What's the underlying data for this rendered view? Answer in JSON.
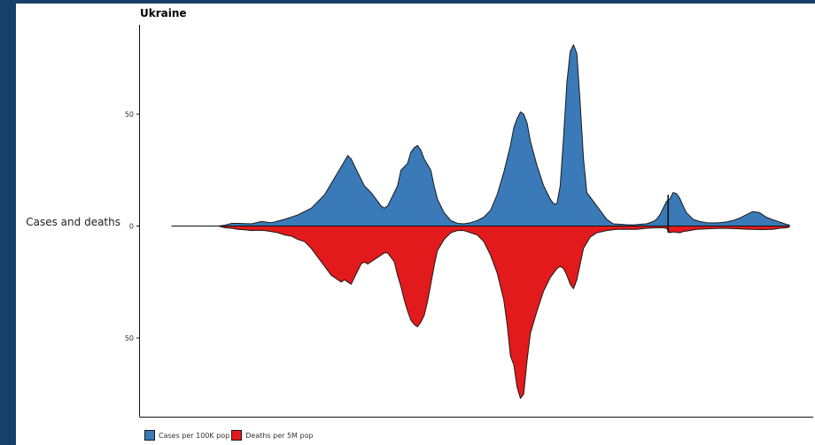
{
  "chart_data": {
    "type": "area",
    "title": "Ukraine",
    "ylabel": "Cases and deaths",
    "xlabel": "",
    "y_ticks": [
      {
        "label": "50",
        "value": 50
      },
      {
        "label": "0",
        "value": 0
      },
      {
        "label": "50",
        "value": -50
      }
    ],
    "ylim": [
      -85,
      90
    ],
    "x_range": [
      0,
      200
    ],
    "grid": false,
    "legend_position": "bottom-left",
    "series": [
      {
        "name": "Cases per 100K pop",
        "color": "#3a7ab8",
        "direction": "up",
        "points": [
          [
            0,
            0
          ],
          [
            14,
            0
          ],
          [
            16,
            0.4
          ],
          [
            18,
            1.2
          ],
          [
            20,
            1.2
          ],
          [
            24,
            1
          ],
          [
            27,
            2
          ],
          [
            30,
            1.5
          ],
          [
            34,
            3
          ],
          [
            38,
            5
          ],
          [
            42,
            8
          ],
          [
            46,
            14
          ],
          [
            48,
            19
          ],
          [
            50,
            24
          ],
          [
            52,
            29
          ],
          [
            53,
            31.5
          ],
          [
            54,
            30
          ],
          [
            56,
            24
          ],
          [
            58,
            18
          ],
          [
            60,
            15
          ],
          [
            61,
            13
          ],
          [
            63,
            9
          ],
          [
            64,
            8
          ],
          [
            65,
            9
          ],
          [
            67,
            15
          ],
          [
            68,
            18
          ],
          [
            69,
            25
          ],
          [
            71,
            28
          ],
          [
            72,
            33
          ],
          [
            73,
            35
          ],
          [
            74,
            36
          ],
          [
            75,
            34
          ],
          [
            76,
            30
          ],
          [
            78,
            25
          ],
          [
            79,
            18
          ],
          [
            80,
            12
          ],
          [
            82,
            6
          ],
          [
            84,
            2.5
          ],
          [
            86,
            1.2
          ],
          [
            88,
            1
          ],
          [
            90,
            1.5
          ],
          [
            92,
            2.5
          ],
          [
            94,
            4
          ],
          [
            96,
            7
          ],
          [
            98,
            14
          ],
          [
            100,
            24
          ],
          [
            102,
            36
          ],
          [
            103,
            44
          ],
          [
            104,
            48
          ],
          [
            105,
            51
          ],
          [
            106,
            50
          ],
          [
            107,
            46
          ],
          [
            108,
            38
          ],
          [
            110,
            27
          ],
          [
            112,
            18
          ],
          [
            114,
            12
          ],
          [
            115,
            10
          ],
          [
            116,
            10
          ],
          [
            117,
            18
          ],
          [
            118,
            40
          ],
          [
            119,
            64
          ],
          [
            120,
            78
          ],
          [
            121,
            81
          ],
          [
            122,
            77
          ],
          [
            123,
            55
          ],
          [
            124,
            30
          ],
          [
            125,
            15
          ],
          [
            127,
            11
          ],
          [
            129,
            7
          ],
          [
            131,
            3
          ],
          [
            133,
            1
          ],
          [
            135,
            0.8
          ],
          [
            137,
            0.6
          ],
          [
            139,
            0.5
          ],
          [
            141,
            0.8
          ],
          [
            143,
            1
          ],
          [
            145,
            2
          ],
          [
            146,
            3
          ],
          [
            147,
            5
          ],
          [
            148,
            8
          ],
          [
            149,
            11
          ],
          [
            150,
            12
          ],
          [
            151,
            15
          ],
          [
            152,
            14.5
          ],
          [
            153,
            12.5
          ],
          [
            154,
            9
          ],
          [
            155,
            6
          ],
          [
            157,
            3
          ],
          [
            159,
            2
          ],
          [
            161,
            1.5
          ],
          [
            163,
            1.4
          ],
          [
            165,
            1.5
          ],
          [
            167,
            1.8
          ],
          [
            169,
            2.5
          ],
          [
            171,
            3.5
          ],
          [
            173,
            5
          ],
          [
            175,
            6.5
          ],
          [
            177,
            6
          ],
          [
            179,
            4
          ],
          [
            181,
            2.8
          ],
          [
            183,
            1.8
          ],
          [
            185,
            0.8
          ],
          [
            186,
            0.5
          ]
        ]
      },
      {
        "name": "Deaths per 5M pop",
        "color": "#e31a1c",
        "direction": "down",
        "points": [
          [
            0,
            0
          ],
          [
            14,
            0
          ],
          [
            16,
            0.8
          ],
          [
            18,
            1
          ],
          [
            20,
            1.5
          ],
          [
            22,
            1.7
          ],
          [
            24,
            2
          ],
          [
            26,
            1.9
          ],
          [
            28,
            2
          ],
          [
            30,
            2.5
          ],
          [
            32,
            3
          ],
          [
            34,
            4
          ],
          [
            36,
            4.5
          ],
          [
            38,
            6
          ],
          [
            40,
            7
          ],
          [
            42,
            10
          ],
          [
            44,
            14
          ],
          [
            46,
            18
          ],
          [
            48,
            22
          ],
          [
            50,
            24
          ],
          [
            51,
            25
          ],
          [
            52,
            24
          ],
          [
            53,
            25
          ],
          [
            54,
            26
          ],
          [
            55,
            23
          ],
          [
            56,
            20
          ],
          [
            57,
            17
          ],
          [
            58,
            16
          ],
          [
            59,
            17
          ],
          [
            60,
            16
          ],
          [
            61,
            15
          ],
          [
            62,
            14
          ],
          [
            64,
            12
          ],
          [
            65,
            12
          ],
          [
            67,
            16
          ],
          [
            68,
            22
          ],
          [
            69,
            27
          ],
          [
            70,
            33
          ],
          [
            71,
            38
          ],
          [
            72,
            42
          ],
          [
            73,
            44
          ],
          [
            74,
            45
          ],
          [
            75,
            43
          ],
          [
            76,
            40
          ],
          [
            77,
            34
          ],
          [
            78,
            26
          ],
          [
            79,
            18
          ],
          [
            80,
            11
          ],
          [
            82,
            6
          ],
          [
            84,
            3
          ],
          [
            86,
            2
          ],
          [
            88,
            2
          ],
          [
            90,
            3
          ],
          [
            92,
            4
          ],
          [
            94,
            7
          ],
          [
            96,
            13
          ],
          [
            98,
            21
          ],
          [
            100,
            33
          ],
          [
            101,
            44
          ],
          [
            102,
            58
          ],
          [
            103,
            62
          ],
          [
            104,
            72
          ],
          [
            105,
            77
          ],
          [
            106,
            75
          ],
          [
            107,
            60
          ],
          [
            108,
            48
          ],
          [
            110,
            38
          ],
          [
            112,
            29
          ],
          [
            114,
            23
          ],
          [
            116,
            19
          ],
          [
            117,
            18
          ],
          [
            118,
            19
          ],
          [
            119,
            22
          ],
          [
            120,
            26
          ],
          [
            121,
            28
          ],
          [
            122,
            24
          ],
          [
            124,
            10
          ],
          [
            126,
            5
          ],
          [
            128,
            3
          ],
          [
            131,
            2
          ],
          [
            134,
            1.5
          ],
          [
            137,
            1.5
          ],
          [
            140,
            1.5
          ],
          [
            143,
            1
          ],
          [
            146,
            0.8
          ],
          [
            148,
            0.8
          ],
          [
            149,
            1
          ],
          [
            150,
            3
          ],
          [
            151,
            2.6
          ],
          [
            152,
            2.8
          ],
          [
            153,
            3
          ],
          [
            154,
            2.5
          ],
          [
            156,
            2
          ],
          [
            158,
            1.5
          ],
          [
            162,
            1.2
          ],
          [
            166,
            1
          ],
          [
            170,
            1.2
          ],
          [
            174,
            1.5
          ],
          [
            178,
            1.6
          ],
          [
            181,
            1.5
          ],
          [
            183,
            1
          ],
          [
            185,
            0.8
          ],
          [
            186,
            0.5
          ]
        ]
      }
    ],
    "annotations": [
      {
        "type": "vline",
        "x": 149.5,
        "from": -3,
        "to": 14
      }
    ]
  }
}
